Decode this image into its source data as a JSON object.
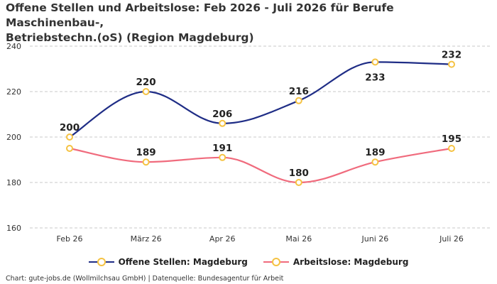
{
  "title_line1": "Offene Stellen und Arbeitslose: Feb 2026 - Juli 2026 für Berufe Maschinenbau-,",
  "title_line2": "Betriebstechn.(oS) (Region Magdeburg)",
  "source": "Chart: gute-jobs.de (Wollmilchsau GmbH) | Datenquelle: Bundesagentur für Arbeit",
  "marker_color": "#f5c242",
  "chart_data": {
    "type": "line",
    "categories": [
      "Feb 26",
      "März 26",
      "Apr 26",
      "Mai 26",
      "Juni 26",
      "Juli 26"
    ],
    "ylim": [
      160,
      240
    ],
    "yticks": [
      "160",
      "180",
      "200",
      "220",
      "240"
    ],
    "grid": true,
    "legend_position": "bottom",
    "series": [
      {
        "name": "Offene Stellen: Magdeburg",
        "color": "#1f2d86",
        "values": [
          200,
          220,
          206,
          216,
          233,
          232
        ],
        "labels": [
          "200",
          "220",
          "206",
          "216",
          "233",
          "232"
        ]
      },
      {
        "name": "Arbeitslose: Magdeburg",
        "color": "#f06b7d",
        "values": [
          195,
          189,
          191,
          180,
          189,
          195
        ],
        "labels": [
          "",
          "189",
          "191",
          "180",
          "189",
          "195"
        ]
      }
    ]
  }
}
